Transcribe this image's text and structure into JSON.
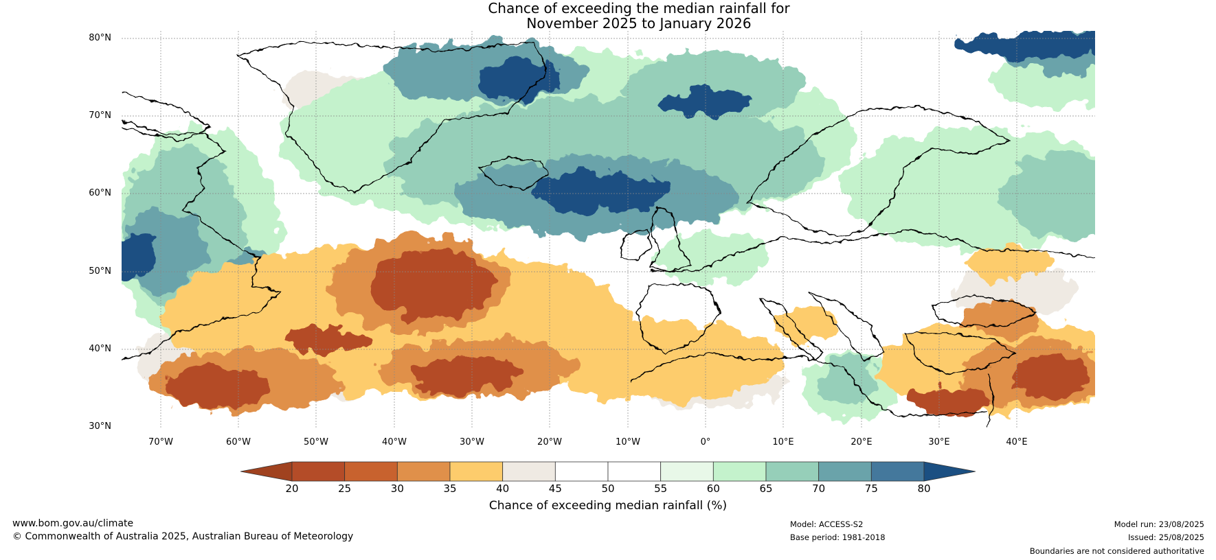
{
  "title": {
    "line1": "Chance of exceeding the median rainfall for",
    "line2": "November 2025 to January 2026"
  },
  "lat_labels": [
    "80°N",
    "70°N",
    "60°N",
    "50°N",
    "40°N",
    "30°N"
  ],
  "lon_labels": [
    "70°W",
    "60°W",
    "50°W",
    "40°W",
    "30°W",
    "20°W",
    "10°W",
    "0°",
    "10°E",
    "20°E",
    "30°E",
    "40°E"
  ],
  "colorbar": {
    "ticks": [
      "20",
      "25",
      "30",
      "35",
      "40",
      "45",
      "50",
      "55",
      "60",
      "65",
      "70",
      "75",
      "80"
    ],
    "colors": [
      "#a0421f",
      "#b44c28",
      "#c8622e",
      "#e0904a",
      "#fdcc6c",
      "#efeae3",
      "#ffffff",
      "#ffffff",
      "#e8f8e8",
      "#c4f2cc",
      "#96cfb9",
      "#6aa3aa",
      "#44789c",
      "#1b4f82"
    ],
    "label": "Chance of exceeding median rainfall (%)"
  },
  "map": {
    "extent": {
      "lon": [
        -75,
        50
      ],
      "lat": [
        30,
        81
      ]
    }
  },
  "footer": {
    "left_url": "www.bom.gov.au/climate",
    "left_copyright": "© Commonwealth of Australia 2025, Australian Bureau of Meteorology",
    "model": "Model: ACCESS-S2",
    "base_period": "Base period: 1981-2018",
    "model_run": "Model run: 23/08/2025",
    "issued": "Issued: 25/08/2025",
    "disclaimer": "Boundaries are not considered authoritative"
  }
}
